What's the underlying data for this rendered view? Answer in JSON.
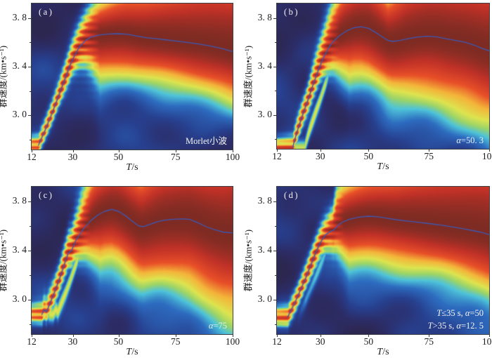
{
  "figure": {
    "background": "#ffffff",
    "frame_color": "#3c4046",
    "curve_color": "#3b5ab5",
    "text_color": "#1c1c1c"
  },
  "axes": {
    "x": {
      "title": "T/s",
      "title_segments": [
        {
          "t": "T",
          "i": true
        },
        {
          "t": "/s",
          "i": false
        }
      ],
      "min": 12,
      "max": 100,
      "ticks": [
        12,
        30,
        50,
        75,
        100
      ],
      "tick_labels": [
        "12",
        "30",
        "50",
        "75",
        "100"
      ]
    },
    "y": {
      "title": "群速度/(km•s⁻¹)",
      "min": 2.72,
      "max": 3.92,
      "ticks": [
        3.8,
        3.4,
        3.0
      ],
      "tick_labels": [
        "3. 8",
        "3. 4",
        "3. 0"
      ],
      "minor_ticks": [
        3.6,
        3.2,
        2.8
      ]
    }
  },
  "colormap": [
    [
      0.0,
      "#2c2750"
    ],
    [
      0.08,
      "#2c2c66"
    ],
    [
      0.18,
      "#27408f"
    ],
    [
      0.3,
      "#2d6cc0"
    ],
    [
      0.4,
      "#4ec3d9"
    ],
    [
      0.48,
      "#9bd468"
    ],
    [
      0.56,
      "#dde44f"
    ],
    [
      0.66,
      "#f4b43a"
    ],
    [
      0.76,
      "#e84f28"
    ],
    [
      0.88,
      "#c03127"
    ],
    [
      1.0,
      "#6e2a22"
    ]
  ],
  "chart_data": {
    "type": "heatmap",
    "description": "2x2 panels of wavelet-transform group-velocity dispersion energy diagrams (period T vs group velocity), each with a picked dispersion curve overlaid.",
    "x_range": [
      12,
      100
    ],
    "y_range": [
      2.72,
      3.92
    ],
    "panels": [
      {
        "id": "a",
        "tag": "(a)",
        "annotation_lines": [
          [
            {
              "t": "Morlet小波",
              "i": false
            }
          ]
        ],
        "annotation_color": "#f5f3ef",
        "curve": [
          [
            15,
            2.755
          ],
          [
            16,
            2.8
          ],
          [
            17.5,
            2.86
          ],
          [
            19,
            2.93
          ],
          [
            21,
            3.02
          ],
          [
            23,
            3.12
          ],
          [
            25,
            3.22
          ],
          [
            27,
            3.32
          ],
          [
            29,
            3.42
          ],
          [
            31,
            3.5
          ],
          [
            33,
            3.565
          ],
          [
            35.5,
            3.615
          ],
          [
            38,
            3.645
          ],
          [
            42,
            3.663
          ],
          [
            46,
            3.67
          ],
          [
            50,
            3.672
          ],
          [
            54,
            3.667
          ],
          [
            58,
            3.652
          ],
          [
            62,
            3.64
          ],
          [
            66,
            3.632
          ],
          [
            70,
            3.623
          ],
          [
            75,
            3.612
          ],
          [
            80,
            3.6
          ],
          [
            85,
            3.588
          ],
          [
            90,
            3.572
          ],
          [
            95,
            3.552
          ],
          [
            100,
            3.525
          ]
        ],
        "sigma_low": [
          [
            12,
            0.055
          ],
          [
            24,
            0.065
          ],
          [
            30,
            0.09
          ],
          [
            36,
            0.18
          ],
          [
            42,
            0.3
          ],
          [
            60,
            0.3
          ],
          [
            80,
            0.31
          ],
          [
            100,
            0.33
          ]
        ],
        "sigma_high": [
          [
            12,
            0.06
          ],
          [
            24,
            0.08
          ],
          [
            32,
            0.13
          ],
          [
            40,
            0.22
          ],
          [
            50,
            0.28
          ],
          [
            62,
            0.35
          ],
          [
            80,
            0.52
          ],
          [
            100,
            0.72
          ]
        ],
        "amp": [
          [
            12,
            0.86
          ],
          [
            20,
            0.9
          ],
          [
            28,
            0.97
          ],
          [
            34,
            1
          ],
          [
            100,
            1
          ]
        ],
        "dots": {
          "amp": 0.3,
          "period": 0.06,
          "t_end": 42
        },
        "secondary": null,
        "seed": [
          0.7,
          2.1,
          4.3,
          1.2
        ]
      },
      {
        "id": "b",
        "tag": "(b)",
        "annotation_lines": [
          [
            {
              "t": "α",
              "i": true
            },
            {
              "t": "=50. 3",
              "i": false
            }
          ]
        ],
        "annotation_color": "#e6f2fb",
        "curve": [
          [
            18.5,
            2.73
          ],
          [
            19.5,
            2.8
          ],
          [
            20.5,
            2.87
          ],
          [
            21.5,
            2.93
          ],
          [
            23,
            3.02
          ],
          [
            25,
            3.13
          ],
          [
            27,
            3.25
          ],
          [
            29,
            3.36
          ],
          [
            31,
            3.46
          ],
          [
            33,
            3.54
          ],
          [
            35,
            3.6
          ],
          [
            38,
            3.655
          ],
          [
            41,
            3.695
          ],
          [
            44,
            3.72
          ],
          [
            47,
            3.728
          ],
          [
            50,
            3.715
          ],
          [
            53,
            3.68
          ],
          [
            56,
            3.64
          ],
          [
            58,
            3.615
          ],
          [
            60,
            3.607
          ],
          [
            63,
            3.615
          ],
          [
            66,
            3.628
          ],
          [
            70,
            3.642
          ],
          [
            74,
            3.65
          ],
          [
            78,
            3.645
          ],
          [
            82,
            3.63
          ],
          [
            86,
            3.615
          ],
          [
            90,
            3.6
          ],
          [
            94,
            3.575
          ],
          [
            97,
            3.55
          ],
          [
            100,
            3.53
          ]
        ],
        "sigma_low": [
          [
            12,
            0.055
          ],
          [
            24,
            0.07
          ],
          [
            30,
            0.1
          ],
          [
            36,
            0.2
          ],
          [
            42,
            0.33
          ],
          [
            60,
            0.38
          ],
          [
            80,
            0.44
          ],
          [
            100,
            0.5
          ]
        ],
        "sigma_high": [
          [
            12,
            0.06
          ],
          [
            24,
            0.09
          ],
          [
            32,
            0.18
          ],
          [
            40,
            0.33
          ],
          [
            50,
            0.42
          ],
          [
            58,
            0.34
          ],
          [
            66,
            0.5
          ],
          [
            80,
            0.6
          ],
          [
            100,
            0.72
          ]
        ],
        "amp": [
          [
            12,
            0.86
          ],
          [
            20,
            0.9
          ],
          [
            28,
            0.97
          ],
          [
            34,
            1
          ],
          [
            100,
            1
          ]
        ],
        "dots": {
          "amp": 0.32,
          "period": 0.06,
          "t_end": 38
        },
        "secondary": {
          "dT": 5,
          "amp": 0.52,
          "sig": 0.05,
          "t0": 16,
          "t1": 36
        },
        "seed": [
          2.3,
          0.4,
          1.9,
          3.6
        ]
      },
      {
        "id": "c",
        "tag": "(c)",
        "annotation_lines": [
          [
            {
              "t": "α",
              "i": true
            },
            {
              "t": "=75",
              "i": false
            }
          ]
        ],
        "annotation_color": "#d9f3df",
        "curve": [
          [
            16.5,
            2.88
          ],
          [
            17.5,
            2.92
          ],
          [
            18.5,
            2.9
          ],
          [
            20,
            2.97
          ],
          [
            22,
            3.06
          ],
          [
            24,
            3.16
          ],
          [
            26,
            3.27
          ],
          [
            28,
            3.38
          ],
          [
            29.5,
            3.4
          ],
          [
            31,
            3.47
          ],
          [
            33,
            3.53
          ],
          [
            35,
            3.585
          ],
          [
            38,
            3.645
          ],
          [
            41,
            3.69
          ],
          [
            44,
            3.72
          ],
          [
            47,
            3.735
          ],
          [
            50,
            3.72
          ],
          [
            53,
            3.685
          ],
          [
            56,
            3.64
          ],
          [
            59,
            3.6
          ],
          [
            61,
            3.595
          ],
          [
            64,
            3.615
          ],
          [
            67,
            3.635
          ],
          [
            70,
            3.648
          ],
          [
            74,
            3.655
          ],
          [
            78,
            3.658
          ],
          [
            81,
            3.655
          ],
          [
            85,
            3.625
          ],
          [
            89,
            3.59
          ],
          [
            93,
            3.565
          ],
          [
            96,
            3.55
          ],
          [
            100,
            3.545
          ]
        ],
        "sigma_low": [
          [
            12,
            0.055
          ],
          [
            24,
            0.07
          ],
          [
            30,
            0.1
          ],
          [
            36,
            0.2
          ],
          [
            42,
            0.33
          ],
          [
            60,
            0.4
          ],
          [
            80,
            0.48
          ],
          [
            100,
            0.56
          ]
        ],
        "sigma_high": [
          [
            12,
            0.06
          ],
          [
            24,
            0.09
          ],
          [
            32,
            0.18
          ],
          [
            40,
            0.33
          ],
          [
            50,
            0.42
          ],
          [
            60,
            0.4
          ],
          [
            70,
            0.5
          ],
          [
            80,
            0.58
          ],
          [
            100,
            0.72
          ]
        ],
        "amp": [
          [
            12,
            0.86
          ],
          [
            20,
            0.9
          ],
          [
            28,
            0.97
          ],
          [
            34,
            1
          ],
          [
            100,
            1
          ]
        ],
        "dots": {
          "amp": 0.32,
          "period": 0.06,
          "t_end": 38
        },
        "secondary": {
          "dT": 5,
          "amp": 0.5,
          "sig": 0.05,
          "t0": 16,
          "t1": 36
        },
        "seed": [
          4.1,
          1.5,
          0.6,
          2.8
        ]
      },
      {
        "id": "d",
        "tag": "(d)",
        "annotation_lines": [
          [
            {
              "t": "T",
              "i": true
            },
            {
              "t": "≤35 s, ",
              "i": false
            },
            {
              "t": "α",
              "i": true
            },
            {
              "t": "=50",
              "i": false
            }
          ],
          [
            {
              "t": "T",
              "i": true
            },
            {
              "t": ">35 s, ",
              "i": false
            },
            {
              "t": "α",
              "i": true
            },
            {
              "t": "=12. 5",
              "i": false
            }
          ]
        ],
        "annotation_color": "#f5f3ef",
        "curve": [
          [
            16.5,
            2.86
          ],
          [
            18,
            2.92
          ],
          [
            20,
            3.0
          ],
          [
            22,
            3.09
          ],
          [
            24,
            3.18
          ],
          [
            26,
            3.28
          ],
          [
            28,
            3.38
          ],
          [
            30,
            3.465
          ],
          [
            32,
            3.525
          ],
          [
            34,
            3.555
          ],
          [
            35.5,
            3.565
          ],
          [
            37,
            3.6
          ],
          [
            39,
            3.63
          ],
          [
            42,
            3.655
          ],
          [
            46,
            3.672
          ],
          [
            50,
            3.68
          ],
          [
            54,
            3.675
          ],
          [
            58,
            3.662
          ],
          [
            62,
            3.65
          ],
          [
            66,
            3.641
          ],
          [
            70,
            3.632
          ],
          [
            75,
            3.62
          ],
          [
            80,
            3.608
          ],
          [
            85,
            3.592
          ],
          [
            90,
            3.575
          ],
          [
            94,
            3.56
          ],
          [
            97,
            3.548
          ],
          [
            100,
            3.53
          ]
        ],
        "sigma_low": [
          [
            12,
            0.055
          ],
          [
            24,
            0.065
          ],
          [
            30,
            0.085
          ],
          [
            36,
            0.14
          ],
          [
            42,
            0.28
          ],
          [
            60,
            0.31
          ],
          [
            80,
            0.35
          ],
          [
            100,
            0.4
          ]
        ],
        "sigma_high": [
          [
            12,
            0.06
          ],
          [
            24,
            0.08
          ],
          [
            33,
            0.11
          ],
          [
            35,
            0.13
          ],
          [
            37,
            0.26
          ],
          [
            45,
            0.3
          ],
          [
            62,
            0.38
          ],
          [
            80,
            0.54
          ],
          [
            100,
            0.7
          ]
        ],
        "amp": [
          [
            12,
            0.86
          ],
          [
            20,
            0.9
          ],
          [
            28,
            0.97
          ],
          [
            34,
            1
          ],
          [
            100,
            1
          ]
        ],
        "dots": {
          "amp": 0.3,
          "period": 0.06,
          "t_end": 40
        },
        "secondary": {
          "dT": 4,
          "amp": 0.3,
          "sig": 0.045,
          "t0": 20,
          "t1": 38
        },
        "seed": [
          1.1,
          3.3,
          2.2,
          0.9
        ]
      }
    ]
  }
}
